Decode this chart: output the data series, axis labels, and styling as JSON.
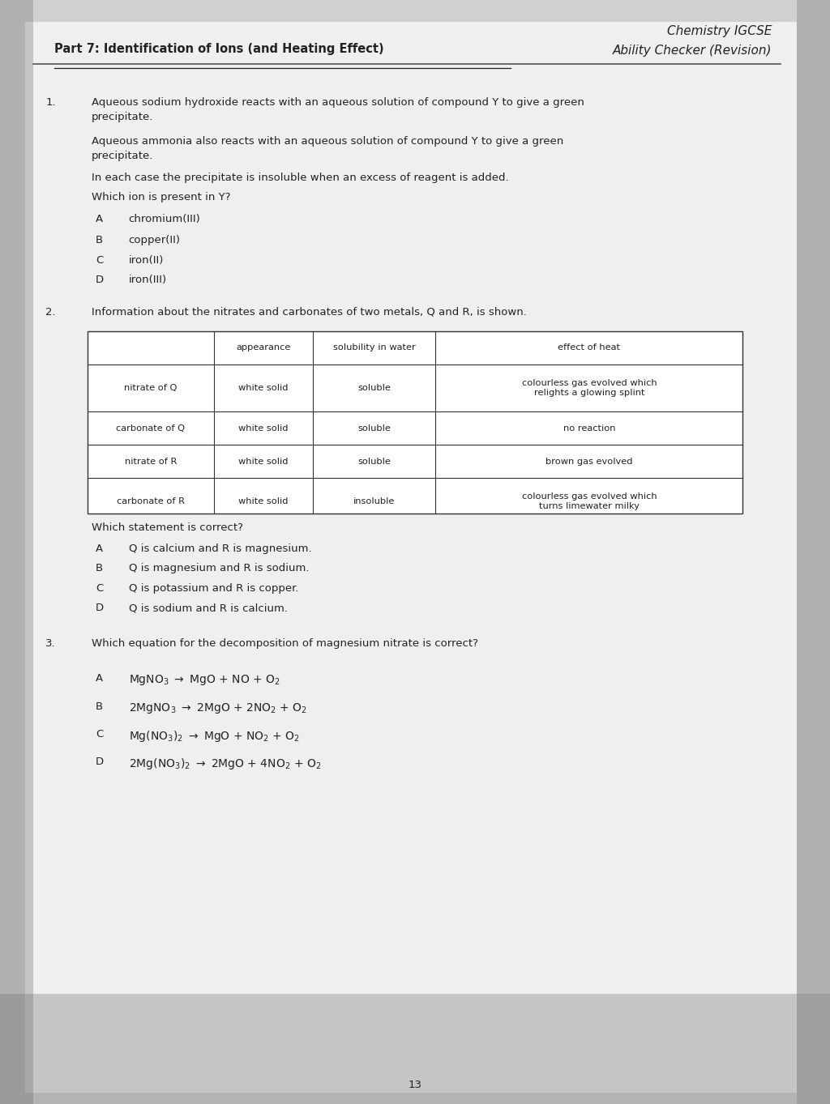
{
  "bg_color": "#d0d0d0",
  "paper_color": "#efefef",
  "text_color": "#222222",
  "header_right_line1": "Chemistry IGCSE",
  "header_right_line2": "Ability Checker (Revision)",
  "part_title": "Part 7: Identification of Ions (and Heating Effect)",
  "q1_number": "1.",
  "q1_text1": "Aqueous sodium hydroxide reacts with an aqueous solution of compound Y to give a green\nprecipitate.",
  "q1_text2": "Aqueous ammonia also reacts with an aqueous solution of compound Y to give a green\nprecipitate.",
  "q1_text3": "In each case the precipitate is insoluble when an excess of reagent is added.",
  "q1_ask": "Which ion is present in Y?",
  "q1_options": [
    [
      "A",
      "chromium(III)"
    ],
    [
      "B",
      "copper(II)"
    ],
    [
      "C",
      "iron(II)"
    ],
    [
      "D",
      "iron(III)"
    ]
  ],
  "q2_number": "2.",
  "q2_text": "Information about the nitrates and carbonates of two metals, Q and R, is shown.",
  "table_headers": [
    "",
    "appearance",
    "solubility in water",
    "effect of heat"
  ],
  "table_rows": [
    [
      "nitrate of Q",
      "white solid",
      "soluble",
      "colourless gas evolved which\nrelights a glowing splint"
    ],
    [
      "carbonate of Q",
      "white solid",
      "soluble",
      "no reaction"
    ],
    [
      "nitrate of R",
      "white solid",
      "soluble",
      "brown gas evolved"
    ],
    [
      "carbonate of R",
      "white solid",
      "insoluble",
      "colourless gas evolved which\nturns limewater milky"
    ]
  ],
  "q2_ask": "Which statement is correct?",
  "q2_options": [
    [
      "A",
      "Q is calcium and R is magnesium."
    ],
    [
      "B",
      "Q is magnesium and R is sodium."
    ],
    [
      "C",
      "Q is potassium and R is copper."
    ],
    [
      "D",
      "Q is sodium and R is calcium."
    ]
  ],
  "q3_number": "3.",
  "q3_text": "Which equation for the decomposition of magnesium nitrate is correct?",
  "page_number": "13"
}
